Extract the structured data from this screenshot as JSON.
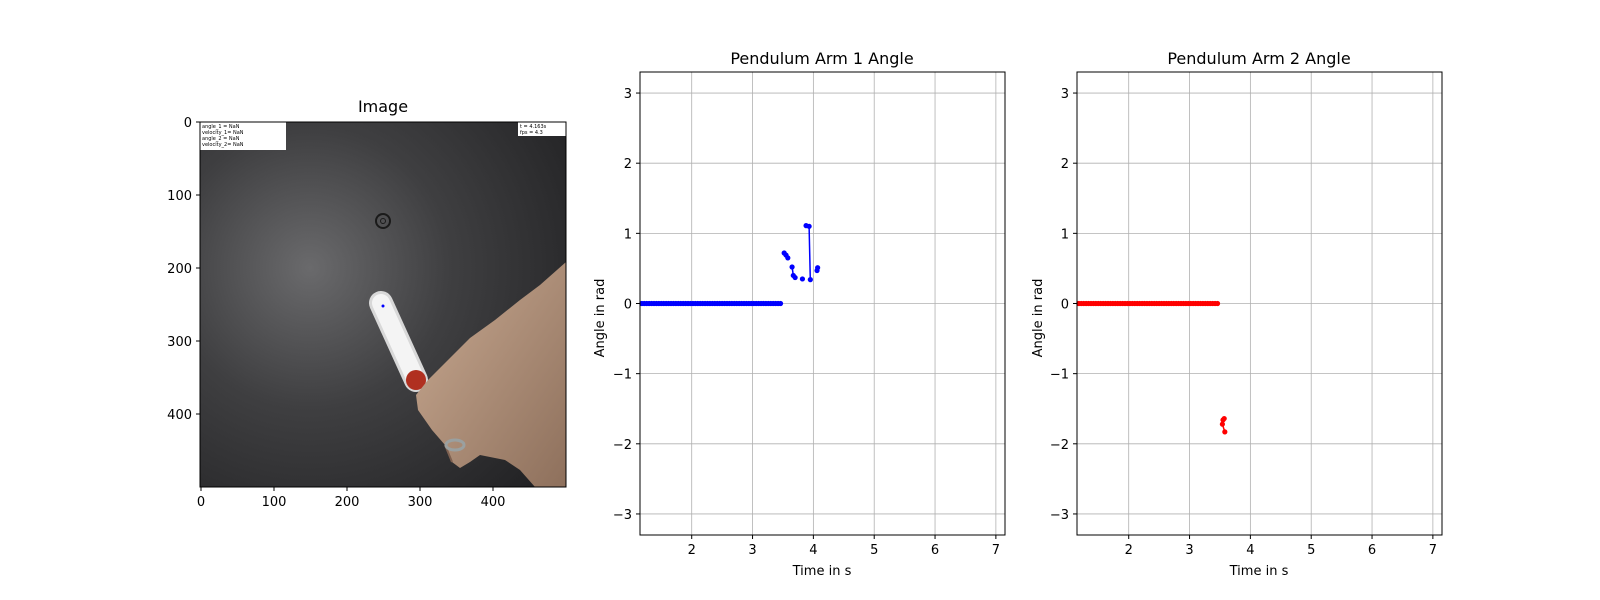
{
  "figure": {
    "background": "#ffffff"
  },
  "image_panel": {
    "title": "Image",
    "x_ticks": [
      0,
      100,
      200,
      300,
      400
    ],
    "y_ticks": [
      0,
      100,
      200,
      300,
      400
    ],
    "xlim": [
      0,
      500
    ],
    "ylim": [
      500,
      0
    ],
    "overlay_left": [
      "angle_1    =   NaN",
      "velocity_1=  NaN",
      "angle_2    =   NaN",
      "velocity_2=  NaN"
    ],
    "overlay_right": [
      "t   =  4.163s",
      "fps  =  4.3"
    ],
    "pivot_icon": "circle-target-icon",
    "hand_icon": "hand-image",
    "pendulum_icon": "pendulum-arm-image",
    "marker_color": "#b03020"
  },
  "chart_data": [
    {
      "type": "line",
      "title": "Pendulum Arm 1 Angle",
      "xlabel": "Time in s",
      "ylabel": "Angle in rad",
      "xlim": [
        1.15,
        7.15
      ],
      "ylim": [
        -3.3,
        3.3
      ],
      "x_ticks": [
        2,
        3,
        4,
        5,
        6,
        7
      ],
      "y_ticks": [
        -3,
        -2,
        -1,
        0,
        1,
        2,
        3
      ],
      "grid": true,
      "color": "#0000ff",
      "series": [
        {
          "x": [
            1.18,
            1.22,
            1.26,
            1.3,
            1.34,
            1.38,
            1.42,
            1.46,
            1.5,
            1.54,
            1.58,
            1.62,
            1.66,
            1.7,
            1.74,
            1.78,
            1.82,
            1.86,
            1.9,
            1.94,
            1.98,
            2.02,
            2.06,
            2.1,
            2.14,
            2.18,
            2.22,
            2.26,
            2.3,
            2.34,
            2.38,
            2.42,
            2.46,
            2.5,
            2.54,
            2.58,
            2.62,
            2.66,
            2.7,
            2.74,
            2.78,
            2.82,
            2.86,
            2.9,
            2.94,
            2.98,
            3.02,
            3.06,
            3.1,
            3.14,
            3.18,
            3.22,
            3.26,
            3.3,
            3.34,
            3.38,
            3.42,
            3.46
          ],
          "y": [
            0,
            0,
            0,
            0,
            0,
            0,
            0,
            0,
            0,
            0,
            0,
            0,
            0,
            0,
            0,
            0,
            0,
            0,
            0,
            0,
            0,
            0,
            0,
            0,
            0,
            0,
            0,
            0,
            0,
            0,
            0,
            0,
            0,
            0,
            0,
            0,
            0,
            0,
            0,
            0,
            0,
            0,
            0,
            0,
            0,
            0,
            0,
            0,
            0,
            0,
            0,
            0,
            0,
            0,
            0,
            0,
            0,
            0
          ]
        },
        {
          "x": [
            3.52,
            3.55,
            3.58
          ],
          "y": [
            0.72,
            0.69,
            0.65
          ]
        },
        {
          "x": [
            3.65,
            3.67,
            3.7
          ],
          "y": [
            0.52,
            0.4,
            0.37
          ]
        },
        {
          "x": [
            3.82
          ],
          "y": [
            0.35
          ]
        },
        {
          "x": [
            3.88,
            3.93,
            3.95
          ],
          "y": [
            1.11,
            1.1,
            0.34
          ]
        },
        {
          "x": [
            4.06,
            4.07
          ],
          "y": [
            0.47,
            0.51
          ]
        }
      ]
    },
    {
      "type": "line",
      "title": "Pendulum Arm 2 Angle",
      "xlabel": "Time in s",
      "ylabel": "Angle in rad",
      "xlim": [
        1.15,
        7.15
      ],
      "ylim": [
        -3.3,
        3.3
      ],
      "x_ticks": [
        2,
        3,
        4,
        5,
        6,
        7
      ],
      "y_ticks": [
        -3,
        -2,
        -1,
        0,
        1,
        2,
        3
      ],
      "grid": true,
      "color": "#ff0000",
      "series": [
        {
          "x": [
            1.18,
            1.22,
            1.26,
            1.3,
            1.34,
            1.38,
            1.42,
            1.46,
            1.5,
            1.54,
            1.58,
            1.62,
            1.66,
            1.7,
            1.74,
            1.78,
            1.82,
            1.86,
            1.9,
            1.94,
            1.98,
            2.02,
            2.06,
            2.1,
            2.14,
            2.18,
            2.22,
            2.26,
            2.3,
            2.34,
            2.38,
            2.42,
            2.46,
            2.5,
            2.54,
            2.58,
            2.62,
            2.66,
            2.7,
            2.74,
            2.78,
            2.82,
            2.86,
            2.9,
            2.94,
            2.98,
            3.02,
            3.06,
            3.1,
            3.14,
            3.18,
            3.22,
            3.26,
            3.3,
            3.34,
            3.38,
            3.42,
            3.46
          ],
          "y": [
            0,
            0,
            0,
            0,
            0,
            0,
            0,
            0,
            0,
            0,
            0,
            0,
            0,
            0,
            0,
            0,
            0,
            0,
            0,
            0,
            0,
            0,
            0,
            0,
            0,
            0,
            0,
            0,
            0,
            0,
            0,
            0,
            0,
            0,
            0,
            0,
            0,
            0,
            0,
            0,
            0,
            0,
            0,
            0,
            0,
            0,
            0,
            0,
            0,
            0,
            0,
            0,
            0,
            0,
            0,
            0,
            0,
            0
          ]
        },
        {
          "x": [
            3.55,
            3.57,
            3.54,
            3.58
          ],
          "y": [
            -1.66,
            -1.64,
            -1.72,
            -1.83
          ]
        }
      ]
    }
  ]
}
